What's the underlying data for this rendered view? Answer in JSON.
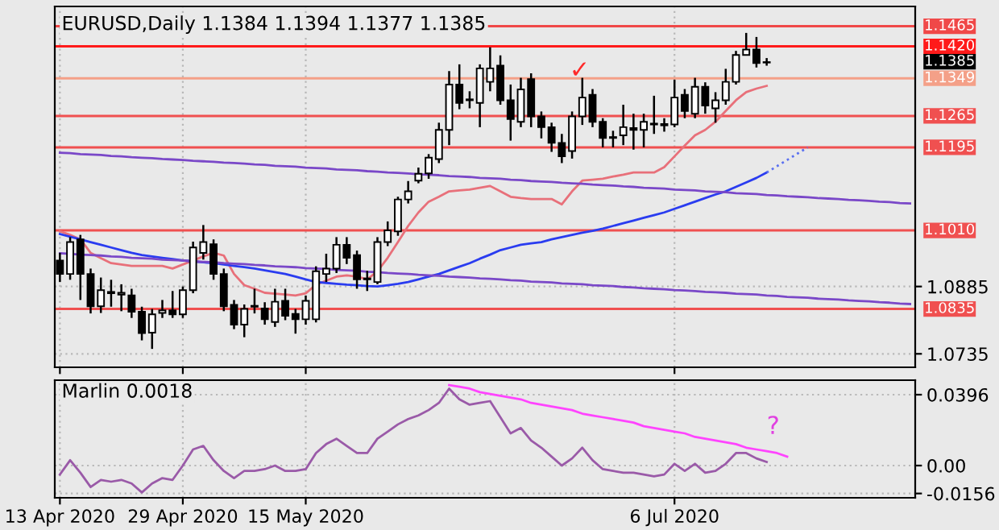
{
  "chart_data": [
    {
      "type": "candlestick",
      "title": "EURUSD,Daily 1.1384 1.1394 1.1377 1.1385",
      "categories": [
        null,
        null,
        null,
        null,
        null,
        null,
        null,
        null,
        null,
        null,
        null,
        null,
        null,
        null,
        null,
        null,
        null,
        null,
        null,
        null,
        null,
        null,
        null,
        null,
        null,
        null,
        null,
        null,
        null,
        null,
        null,
        null,
        null,
        null,
        null,
        null,
        null,
        null,
        null,
        null,
        null,
        null,
        null,
        null,
        null,
        null,
        null,
        null,
        null,
        null,
        null,
        null,
        null,
        null,
        null,
        null,
        null,
        null,
        null,
        null,
        null,
        null,
        null,
        null,
        null,
        null,
        null,
        null,
        null,
        null,
        null,
        null,
        null,
        null,
        null,
        null,
        null,
        null,
        null,
        null,
        null,
        null,
        null,
        null
      ],
      "ohlc": [
        [
          1.0943,
          1.096,
          1.0895,
          1.0913
        ],
        [
          1.0913,
          1.0995,
          1.09,
          1.0984
        ],
        [
          1.099,
          1.1,
          1.0855,
          1.0913
        ],
        [
          1.0913,
          1.0925,
          1.0825,
          1.0841
        ],
        [
          1.0841,
          1.0905,
          1.0826,
          1.0877
        ],
        [
          1.087,
          1.09,
          1.084,
          1.0873
        ],
        [
          1.0867,
          1.089,
          1.083,
          1.0871
        ],
        [
          1.0865,
          1.088,
          1.0815,
          1.0829
        ],
        [
          1.0829,
          1.084,
          1.0765,
          1.0781
        ],
        [
          1.0782,
          1.0835,
          1.0746,
          1.0823
        ],
        [
          1.0826,
          1.0855,
          1.0815,
          1.0832
        ],
        [
          1.0832,
          1.0875,
          1.0815,
          1.0823
        ],
        [
          1.0823,
          1.0885,
          1.0815,
          1.0877
        ],
        [
          1.0877,
          1.0985,
          1.087,
          1.0972
        ],
        [
          1.096,
          1.1022,
          1.0945,
          1.0984
        ],
        [
          1.0979,
          1.099,
          1.09,
          1.0913
        ],
        [
          1.0913,
          1.0925,
          1.083,
          1.0841
        ],
        [
          1.0844,
          1.0855,
          1.079,
          1.08
        ],
        [
          1.08,
          1.0845,
          1.0772,
          1.0835
        ],
        [
          1.084,
          1.088,
          1.0825,
          1.0842
        ],
        [
          1.0836,
          1.085,
          1.08,
          1.0812
        ],
        [
          1.0806,
          1.088,
          1.0795,
          1.0851
        ],
        [
          1.0853,
          1.088,
          1.081,
          1.082
        ],
        [
          1.0824,
          1.0835,
          1.078,
          1.0812
        ],
        [
          1.0812,
          1.0865,
          1.08,
          1.0853
        ],
        [
          1.0812,
          1.093,
          1.0805,
          1.0919
        ],
        [
          1.0913,
          1.0958,
          1.0895,
          1.0925
        ],
        [
          1.0925,
          1.0995,
          1.0915,
          1.0978
        ],
        [
          1.0978,
          1.0995,
          1.0935,
          1.0949
        ],
        [
          1.0955,
          1.0965,
          1.088,
          1.0901
        ],
        [
          1.0903,
          1.092,
          1.0875,
          1.0901
        ],
        [
          1.0895,
          1.0995,
          1.089,
          1.0984
        ],
        [
          1.0984,
          1.103,
          1.0975,
          1.101
        ],
        [
          1.1008,
          1.1085,
          1.0998,
          1.1079
        ],
        [
          1.1079,
          1.112,
          1.107,
          1.1097
        ],
        [
          1.1121,
          1.115,
          1.1115,
          1.1136
        ],
        [
          1.1137,
          1.118,
          1.1125,
          1.1172
        ],
        [
          1.1169,
          1.125,
          1.116,
          1.1234
        ],
        [
          1.1234,
          1.1365,
          1.12,
          1.1335
        ],
        [
          1.1335,
          1.138,
          1.128,
          1.1294
        ],
        [
          1.1302,
          1.132,
          1.1282,
          1.13
        ],
        [
          1.1294,
          1.138,
          1.124,
          1.1371
        ],
        [
          1.1341,
          1.1418,
          1.132,
          1.1371
        ],
        [
          1.1377,
          1.14,
          1.129,
          1.13
        ],
        [
          1.13,
          1.1335,
          1.121,
          1.1258
        ],
        [
          1.1252,
          1.135,
          1.124,
          1.1324
        ],
        [
          1.1347,
          1.136,
          1.124,
          1.1264
        ],
        [
          1.1264,
          1.1275,
          1.1215,
          1.124
        ],
        [
          1.124,
          1.125,
          1.1185,
          1.1205
        ],
        [
          1.1205,
          1.1225,
          1.116,
          1.1175
        ],
        [
          1.1187,
          1.1275,
          1.117,
          1.1264
        ],
        [
          1.1264,
          1.135,
          1.1245,
          1.1306
        ],
        [
          1.1312,
          1.1325,
          1.124,
          1.1252
        ],
        [
          1.1252,
          1.126,
          1.1195,
          1.1216
        ],
        [
          1.1218,
          1.1232,
          1.1195,
          1.1216
        ],
        [
          1.1222,
          1.129,
          1.12,
          1.124
        ],
        [
          1.1238,
          1.127,
          1.119,
          1.1234
        ],
        [
          1.1234,
          1.127,
          1.1195,
          1.1252
        ],
        [
          1.1248,
          1.131,
          1.1225,
          1.1246
        ],
        [
          1.1244,
          1.126,
          1.123,
          1.1247
        ],
        [
          1.1246,
          1.1346,
          1.124,
          1.1306
        ],
        [
          1.1312,
          1.1325,
          1.126,
          1.1276
        ],
        [
          1.127,
          1.135,
          1.126,
          1.133
        ],
        [
          1.133,
          1.134,
          1.127,
          1.1288
        ],
        [
          1.1282,
          1.1318,
          1.125,
          1.13
        ],
        [
          1.13,
          1.137,
          1.129,
          1.1341
        ],
        [
          1.1341,
          1.141,
          1.1335,
          1.1401
        ],
        [
          1.1401,
          1.145,
          1.14,
          1.1413
        ],
        [
          1.1413,
          1.1441,
          1.1373,
          1.1383
        ],
        [
          1.1384,
          1.1394,
          1.1377,
          1.1385
        ],
        null,
        null,
        null,
        null,
        null,
        null,
        null,
        null,
        null,
        null,
        null,
        null,
        null,
        null
      ],
      "series": [
        {
          "type": "line",
          "color": "#e8707a",
          "values": [
            1.1008,
            1.1,
            1.099,
            1.096,
            1.0948,
            1.0937,
            1.0934,
            1.0931,
            1.0931,
            1.0931,
            1.0931,
            1.0925,
            1.0934,
            1.0943,
            1.0952,
            1.096,
            1.0954,
            1.0913,
            1.0888,
            1.088,
            1.0871,
            1.0869,
            1.0867,
            1.0865,
            1.087,
            1.0889,
            1.0898,
            1.0907,
            1.091,
            1.0907,
            1.0901,
            1.0919,
            1.0949,
            1.0984,
            1.102,
            1.105,
            1.1074,
            1.1085,
            1.1097,
            1.1099,
            1.1101,
            1.1105,
            1.1109,
            1.1097,
            1.1085,
            1.1082,
            1.108,
            1.108,
            1.108,
            1.1068,
            1.1097,
            1.1121,
            1.1123,
            1.1125,
            1.113,
            1.1134,
            1.1139,
            1.1139,
            1.1139,
            1.1151,
            1.1175,
            1.1199,
            1.1222,
            1.1234,
            1.1252,
            1.1276,
            1.13,
            1.1318,
            1.1326,
            1.1332,
            null,
            null,
            null,
            null,
            null,
            null,
            null,
            null,
            null,
            null,
            null,
            null,
            null,
            null
          ]
        },
        {
          "type": "line",
          "color": "#2a3cf0",
          "values": [
            1.1002,
            1.0996,
            1.099,
            1.0984,
            1.0978,
            1.0972,
            1.0966,
            1.096,
            1.0955,
            1.0952,
            1.0949,
            1.0946,
            1.0943,
            1.0941,
            1.0939,
            1.0937,
            1.0934,
            1.0931,
            1.0928,
            1.0925,
            1.0921,
            1.0917,
            1.0913,
            1.0907,
            1.0901,
            1.0895,
            1.0893,
            1.0891,
            1.0889,
            1.0888,
            1.0886,
            1.0885,
            1.0888,
            1.0891,
            1.0895,
            1.0901,
            1.0907,
            1.0913,
            1.0921,
            1.0929,
            1.0937,
            1.0947,
            1.0956,
            1.0966,
            1.0972,
            1.0978,
            1.0981,
            1.0984,
            1.099,
            1.0995,
            1.1,
            1.1005,
            1.1009,
            1.1014,
            1.102,
            1.1026,
            1.1032,
            1.1038,
            1.1044,
            1.105,
            1.1058,
            1.1066,
            1.1074,
            1.1082,
            1.109,
            1.1097,
            1.1107,
            1.1117,
            1.1127,
            1.1139,
            null,
            null,
            null,
            null,
            null,
            null,
            null,
            null,
            null,
            null,
            null,
            null,
            null,
            null
          ]
        },
        {
          "type": "line",
          "color": "#5a70f0",
          "line_style": "dotted",
          "values": [
            null,
            null,
            null,
            null,
            null,
            null,
            null,
            null,
            null,
            null,
            null,
            null,
            null,
            null,
            null,
            null,
            null,
            null,
            null,
            null,
            null,
            null,
            null,
            null,
            null,
            null,
            null,
            null,
            null,
            null,
            null,
            null,
            null,
            null,
            null,
            null,
            null,
            null,
            null,
            null,
            null,
            null,
            null,
            null,
            null,
            null,
            null,
            null,
            null,
            null,
            null,
            null,
            null,
            null,
            null,
            null,
            null,
            null,
            null,
            null,
            null,
            null,
            null,
            null,
            null,
            null,
            null,
            null,
            null,
            1.1139,
            1.1153,
            1.1167,
            1.1181,
            1.1195,
            null,
            null,
            null,
            null,
            null,
            null,
            null,
            null,
            null,
            null
          ]
        },
        {
          "type": "line",
          "color": "#7a48c8",
          "values": [
            1.1183,
            1.1182,
            1.118,
            1.1179,
            1.1178,
            1.1176,
            1.1175,
            1.1173,
            1.1172,
            1.1171,
            1.1169,
            1.1168,
            1.1167,
            1.1165,
            1.1164,
            1.1163,
            1.1161,
            1.116,
            1.1159,
            1.1157,
            1.1156,
            1.1154,
            1.1153,
            1.1152,
            1.115,
            1.1149,
            1.1148,
            1.1146,
            1.1145,
            1.1144,
            1.1142,
            1.1141,
            1.1139,
            1.1138,
            1.1137,
            1.1135,
            1.1134,
            1.1133,
            1.1131,
            1.113,
            1.1129,
            1.1127,
            1.1126,
            1.1125,
            1.1123,
            1.1122,
            1.112,
            1.1119,
            1.1118,
            1.1116,
            1.1115,
            1.1114,
            1.1112,
            1.1111,
            1.111,
            1.1108,
            1.1107,
            1.1105,
            1.1104,
            1.1103,
            1.1101,
            1.11,
            1.1099,
            1.1097,
            1.1096,
            1.1095,
            1.1093,
            1.1092,
            1.1091,
            1.1089,
            1.1088,
            1.1086,
            1.1085,
            1.1084,
            1.1082,
            1.1081,
            1.108,
            1.1078,
            1.1077,
            1.1076,
            1.1074,
            1.1073,
            1.1071,
            1.107
          ]
        },
        {
          "type": "line",
          "color": "#7a48c8",
          "values": [
            1.0959,
            1.0958,
            1.0956,
            1.0955,
            1.0954,
            1.0952,
            1.0951,
            1.0949,
            1.0948,
            1.0947,
            1.0945,
            1.0944,
            1.0943,
            1.0941,
            1.094,
            1.0939,
            1.0937,
            1.0936,
            1.0935,
            1.0933,
            1.0932,
            1.093,
            1.0929,
            1.0928,
            1.0926,
            1.0925,
            1.0924,
            1.0922,
            1.0921,
            1.092,
            1.0918,
            1.0917,
            1.0915,
            1.0914,
            1.0913,
            1.0911,
            1.091,
            1.0909,
            1.0907,
            1.0906,
            1.0905,
            1.0903,
            1.0902,
            1.0901,
            1.0899,
            1.0898,
            1.0896,
            1.0895,
            1.0894,
            1.0892,
            1.0891,
            1.089,
            1.0888,
            1.0887,
            1.0886,
            1.0884,
            1.0883,
            1.0881,
            1.088,
            1.0879,
            1.0877,
            1.0876,
            1.0875,
            1.0873,
            1.0872,
            1.0871,
            1.0869,
            1.0868,
            1.0867,
            1.0865,
            1.0864,
            1.0862,
            1.0861,
            1.086,
            1.0858,
            1.0857,
            1.0856,
            1.0854,
            1.0853,
            1.0852,
            1.085,
            1.0849,
            1.0847,
            1.0846
          ]
        }
      ],
      "ylim": [
        1.0705,
        1.1509
      ],
      "yticks": [
        1.0735,
        1.0885
      ],
      "ref_lines": [
        {
          "axis": "y",
          "value": 1.1465,
          "label": "1.1465",
          "color": "#f04848"
        },
        {
          "axis": "y",
          "value": 1.142,
          "label": "1.1420",
          "color": "#ff1a1a"
        },
        {
          "axis": "y",
          "value": 1.1349,
          "label": "1.1349",
          "color": "#f4a088"
        },
        {
          "axis": "y",
          "value": 1.1265,
          "label": "1.1265",
          "color": "#f05050"
        },
        {
          "axis": "y",
          "value": 1.1195,
          "label": "1.1195",
          "color": "#f05050"
        },
        {
          "axis": "y",
          "value": 1.101,
          "label": "1.1010",
          "color": "#f05050"
        },
        {
          "axis": "y",
          "value": 1.0835,
          "label": "1.0835",
          "color": "#f05050"
        }
      ],
      "annotations": [
        "1.1385",
        "✓"
      ],
      "grid": true
    },
    {
      "type": "line",
      "title": "Marlin 0.0018",
      "categories": [
        "13 Apr 2020",
        null,
        null,
        null,
        null,
        null,
        null,
        null,
        null,
        null,
        null,
        null,
        "29 Apr 2020",
        null,
        null,
        null,
        null,
        null,
        null,
        null,
        null,
        null,
        null,
        null,
        "15 May 2020",
        null,
        null,
        null,
        null,
        null,
        null,
        null,
        null,
        null,
        null,
        null,
        null,
        null,
        null,
        null,
        null,
        null,
        null,
        null,
        null,
        null,
        null,
        null,
        null,
        null,
        null,
        null,
        null,
        null,
        null,
        null,
        null,
        null,
        null,
        null,
        "6 Jul 2020",
        null,
        null,
        null,
        null,
        null,
        null,
        null,
        null,
        null,
        null,
        null,
        null,
        null,
        null,
        null,
        null,
        null,
        null,
        null,
        null,
        null,
        null,
        null
      ],
      "series": [
        {
          "color": "#9a5aa8",
          "values": [
            -0.005,
            0.003,
            -0.004,
            -0.012,
            -0.008,
            -0.009,
            -0.008,
            -0.01,
            -0.015,
            -0.01,
            -0.007,
            -0.008,
            0.0,
            0.009,
            0.011,
            0.003,
            -0.003,
            -0.007,
            -0.003,
            -0.003,
            -0.002,
            0.0,
            -0.003,
            -0.003,
            -0.002,
            0.007,
            0.012,
            0.015,
            0.011,
            0.007,
            0.007,
            0.015,
            0.019,
            0.023,
            0.026,
            0.028,
            0.031,
            0.035,
            0.043,
            0.037,
            0.034,
            0.035,
            0.036,
            0.027,
            0.018,
            0.021,
            0.014,
            0.01,
            0.005,
            0.0,
            0.004,
            0.01,
            0.003,
            -0.002,
            -0.003,
            -0.004,
            -0.004,
            -0.005,
            -0.006,
            -0.005,
            0.001,
            -0.003,
            0.001,
            -0.004,
            -0.003,
            0.001,
            0.007,
            0.007,
            0.004,
            0.002,
            null,
            null,
            null,
            null,
            null,
            null,
            null,
            null,
            null,
            null,
            null,
            null,
            null,
            null
          ]
        },
        {
          "color": "#ff44ff",
          "values": [
            null,
            null,
            null,
            null,
            null,
            null,
            null,
            null,
            null,
            null,
            null,
            null,
            null,
            null,
            null,
            null,
            null,
            null,
            null,
            null,
            null,
            null,
            null,
            null,
            null,
            null,
            null,
            null,
            null,
            null,
            null,
            null,
            null,
            null,
            null,
            null,
            null,
            null,
            0.045,
            0.044,
            0.043,
            0.041,
            0.04,
            0.039,
            0.038,
            0.037,
            0.035,
            0.034,
            0.033,
            0.032,
            0.031,
            0.029,
            0.028,
            0.027,
            0.026,
            0.025,
            0.024,
            0.022,
            0.021,
            0.02,
            0.019,
            0.018,
            0.016,
            0.015,
            0.014,
            0.013,
            0.012,
            0.01,
            0.009,
            0.008,
            0.007,
            0.005,
            null,
            null,
            null,
            null,
            null,
            null,
            null,
            null,
            null,
            null,
            null,
            null
          ]
        }
      ],
      "ylim": [
        -0.018,
        0.0477
      ],
      "yticks": [
        {
          "value": 0.0396,
          "label": "0.0396"
        },
        {
          "value": 0,
          "label": "0.00"
        },
        {
          "value": -0.0156,
          "label": "-0.0156"
        }
      ],
      "annotations": [
        "?"
      ],
      "grid": true
    }
  ]
}
